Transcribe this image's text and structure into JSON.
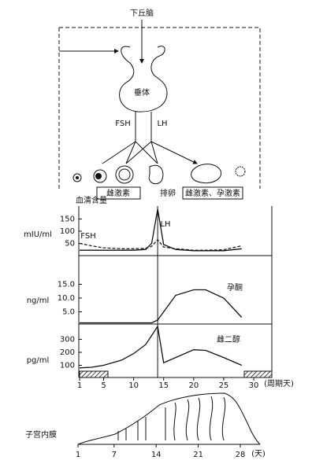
{
  "header": {
    "hypothalamus": "下丘脑",
    "pituitary": "垂体",
    "fsh": "FSH",
    "lh": "LH"
  },
  "ovary": {
    "estrogen": "雌激素",
    "ovulation": "排卵",
    "estrogen_progesterone": "雌激素、孕激素"
  },
  "chart_data": [
    {
      "type": "line",
      "title": "血清含量",
      "ylabel": "mIU/ml",
      "xlim": [
        0,
        33
      ],
      "ylim": [
        0,
        190
      ],
      "yticks": [
        50,
        100,
        150
      ],
      "x": [
        1,
        3,
        5,
        8,
        10,
        12,
        13,
        14,
        15,
        17,
        20,
        22,
        25,
        28
      ],
      "series": [
        {
          "name": "FSH",
          "color": "#222",
          "dashed": true,
          "values": [
            50,
            40,
            32,
            28,
            28,
            30,
            38,
            65,
            35,
            28,
            22,
            22,
            24,
            40
          ]
        },
        {
          "name": "LH",
          "color": "#111",
          "dashed": false,
          "values": [
            22,
            22,
            22,
            22,
            22,
            25,
            50,
            190,
            45,
            25,
            20,
            20,
            20,
            28
          ]
        }
      ]
    },
    {
      "type": "line",
      "ylabel": "ng/ml",
      "xlim": [
        0,
        33
      ],
      "ylim": [
        0,
        18
      ],
      "yticks": [
        {
          "value": 15,
          "label": "15.0"
        },
        {
          "value": 10,
          "label": "10.0"
        },
        {
          "value": 5,
          "label": "5.0"
        }
      ],
      "x": [
        1,
        3,
        5,
        8,
        10,
        12,
        13,
        14,
        15,
        17,
        20,
        22,
        25,
        28
      ],
      "series": [
        {
          "name": "孕酮",
          "color": "#111",
          "dashed": false,
          "values": [
            1,
            1,
            1,
            1,
            1,
            1,
            1,
            2,
            5,
            11,
            13,
            13,
            10,
            3
          ]
        }
      ]
    },
    {
      "type": "line",
      "ylabel": "pg/ml",
      "xlim": [
        0,
        33
      ],
      "ylim": [
        0,
        400
      ],
      "yticks": [
        100,
        200,
        300
      ],
      "xticks": [
        1,
        5,
        10,
        15,
        20,
        25,
        30
      ],
      "xlabel": "(周期天)",
      "x": [
        1,
        3,
        5,
        8,
        10,
        12,
        13,
        14,
        15,
        17,
        20,
        22,
        25,
        28
      ],
      "series": [
        {
          "name": "雌二醇",
          "color": "#111",
          "dashed": false,
          "values": [
            80,
            85,
            100,
            140,
            190,
            260,
            330,
            400,
            120,
            160,
            220,
            215,
            160,
            100
          ]
        }
      ]
    }
  ],
  "endometrium": {
    "label": "子宫内膜",
    "ticks": [
      1,
      7,
      14,
      21,
      28
    ],
    "unit": "(天)"
  }
}
